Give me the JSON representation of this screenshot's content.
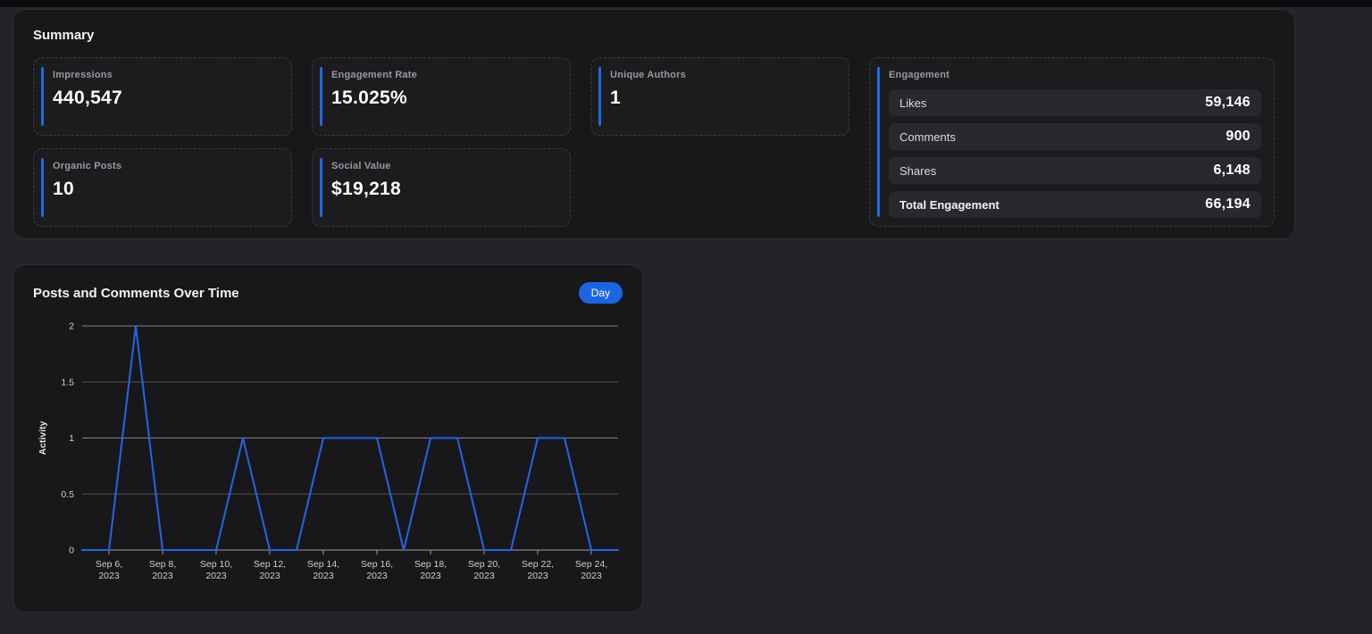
{
  "colors": {
    "accent_blue": "#1d6ce4",
    "button_blue": "#1b66e0",
    "line_blue": "#2465e6"
  },
  "summary": {
    "title": "Summary",
    "cards": [
      {
        "label": "Impressions",
        "value": "440,547"
      },
      {
        "label": "Engagement Rate",
        "value": "15.025%"
      },
      {
        "label": "Unique Authors",
        "value": "1"
      },
      {
        "label": "Organic Posts",
        "value": "10"
      },
      {
        "label": "Social Value",
        "value": "$19,218"
      }
    ],
    "engagement": {
      "title": "Engagement",
      "rows": [
        {
          "label": "Likes",
          "value": "59,146"
        },
        {
          "label": "Comments",
          "value": "900"
        },
        {
          "label": "Shares",
          "value": "6,148"
        },
        {
          "label": "Total Engagement",
          "value": "66,194"
        }
      ]
    }
  },
  "chart_data": {
    "type": "line",
    "title": "Posts and Comments Over Time",
    "interval_selector": "Day",
    "xlabel": "",
    "ylabel": "Activity",
    "ylim": [
      0,
      2
    ],
    "yticks": [
      0,
      0.5,
      1,
      1.5,
      2
    ],
    "grid": true,
    "legend": false,
    "x": [
      "Sep 5, 2023",
      "Sep 6, 2023",
      "Sep 7, 2023",
      "Sep 8, 2023",
      "Sep 9, 2023",
      "Sep 10, 2023",
      "Sep 11, 2023",
      "Sep 12, 2023",
      "Sep 13, 2023",
      "Sep 14, 2023",
      "Sep 15, 2023",
      "Sep 16, 2023",
      "Sep 17, 2023",
      "Sep 18, 2023",
      "Sep 19, 2023",
      "Sep 20, 2023",
      "Sep 21, 2023",
      "Sep 22, 2023",
      "Sep 23, 2023",
      "Sep 24, 2023",
      "Sep 25, 2023"
    ],
    "series": [
      {
        "name": "Activity",
        "color": "#2465e6",
        "values": [
          0,
          0,
          2,
          0,
          0,
          0,
          1,
          0,
          0,
          1,
          1,
          1,
          0,
          1,
          1,
          0,
          0,
          1,
          1,
          0,
          0
        ]
      }
    ],
    "xticks": [
      {
        "index": 1,
        "label": "Sep 6, 2023"
      },
      {
        "index": 3,
        "label": "Sep 8, 2023"
      },
      {
        "index": 5,
        "label": "Sep 10, 2023"
      },
      {
        "index": 7,
        "label": "Sep 12, 2023"
      },
      {
        "index": 9,
        "label": "Sep 14, 2023"
      },
      {
        "index": 11,
        "label": "Sep 16, 2023"
      },
      {
        "index": 13,
        "label": "Sep 18, 2023"
      },
      {
        "index": 15,
        "label": "Sep 20, 2023"
      },
      {
        "index": 17,
        "label": "Sep 22, 2023"
      },
      {
        "index": 19,
        "label": "Sep 24, 2023"
      }
    ]
  }
}
